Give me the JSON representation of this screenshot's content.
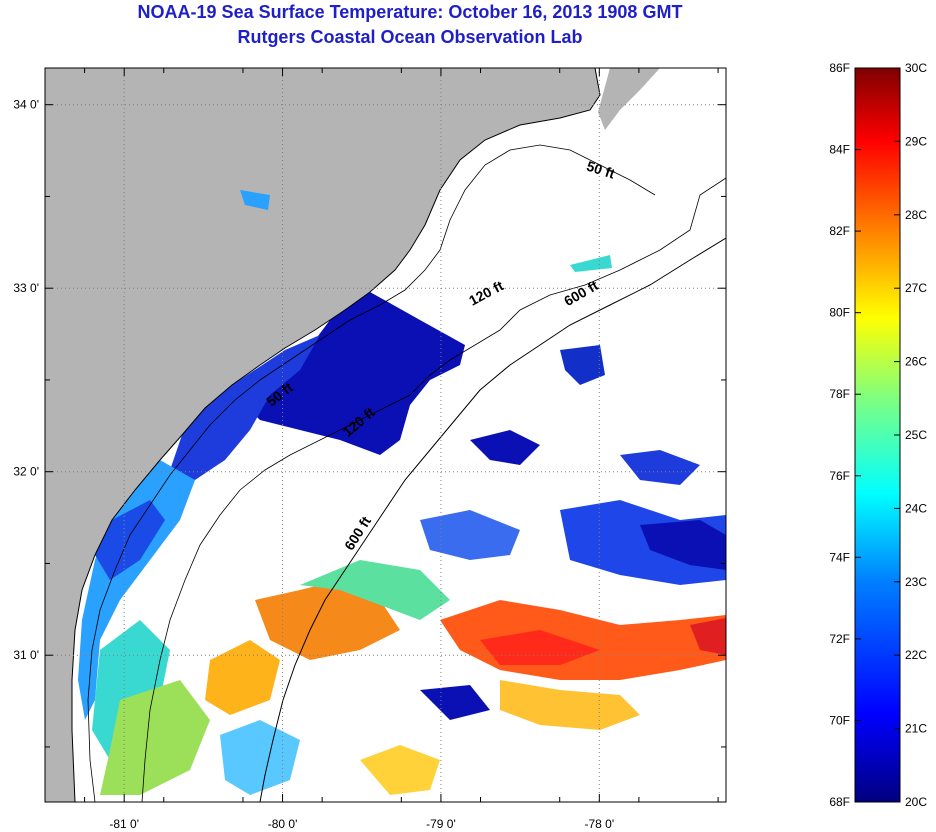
{
  "title": {
    "line1": "NOAA-19 Sea Surface Temperature:  October 16, 2013 1908 GMT",
    "line2": "Rutgers Coastal Ocean Observation Lab"
  },
  "map": {
    "lon_range": [
      -81.5,
      -77.2
    ],
    "lat_range": [
      30.2,
      34.2
    ],
    "lon_ticks": [
      {
        "value": -81,
        "label": "-81 0'"
      },
      {
        "value": -80,
        "label": "-80 0'"
      },
      {
        "value": -79,
        "label": "-79 0'"
      },
      {
        "value": -78,
        "label": "-78 0'"
      }
    ],
    "lat_ticks": [
      {
        "value": 34,
        "label": "34 0'"
      },
      {
        "value": 33,
        "label": "33 0'"
      },
      {
        "value": 32,
        "label": "32 0'"
      },
      {
        "value": 31,
        "label": "31 0'"
      }
    ],
    "contour_labels": [
      {
        "text": "50 ft",
        "lon": -78.0,
        "lat": 33.62
      },
      {
        "text": "120 ft",
        "lon": -78.7,
        "lat": 32.95
      },
      {
        "text": "600 ft",
        "lon": -78.1,
        "lat": 32.95
      },
      {
        "text": "50 ft",
        "lon": -80.0,
        "lat": 32.4
      },
      {
        "text": "120 ft",
        "lon": -79.5,
        "lat": 32.25
      },
      {
        "text": "600 ft",
        "lon": -79.5,
        "lat": 31.65
      }
    ],
    "colors": {
      "land": "#b4b4b4",
      "cloud": "#ffffff",
      "coastline": "#000000",
      "grid": "#808080"
    }
  },
  "colorbar": {
    "fahrenheit_labels": [
      "86F",
      "84F",
      "82F",
      "80F",
      "78F",
      "76F",
      "74F",
      "72F",
      "70F",
      "68F"
    ],
    "celsius_labels": [
      "30C",
      "29C",
      "28C",
      "27C",
      "26C",
      "25C",
      "24C",
      "23C",
      "22C",
      "21C",
      "20C"
    ],
    "color_stops": [
      "#00007f",
      "#0000ff",
      "#007fff",
      "#00ffff",
      "#7fff7f",
      "#ffff00",
      "#ff7f00",
      "#ff0000",
      "#7f0000"
    ]
  }
}
